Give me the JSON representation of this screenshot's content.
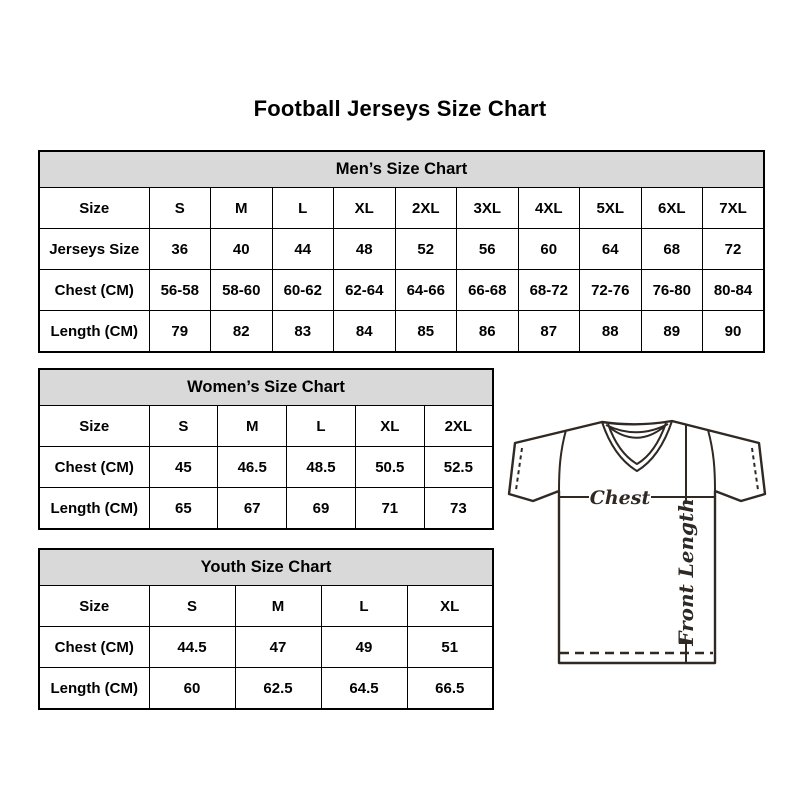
{
  "page_title": "Football Jerseys Size Chart",
  "tables": {
    "men": {
      "title": "Men’s Size Chart",
      "rows": [
        {
          "label": "Size",
          "cells": [
            "S",
            "M",
            "L",
            "XL",
            "2XL",
            "3XL",
            "4XL",
            "5XL",
            "6XL",
            "7XL"
          ]
        },
        {
          "label": "Jerseys Size",
          "cells": [
            "36",
            "40",
            "44",
            "48",
            "52",
            "56",
            "60",
            "64",
            "68",
            "72"
          ]
        },
        {
          "label": "Chest (CM)",
          "cells": [
            "56-58",
            "58-60",
            "60-62",
            "62-64",
            "64-66",
            "66-68",
            "68-72",
            "72-76",
            "76-80",
            "80-84"
          ]
        },
        {
          "label": "Length (CM)",
          "cells": [
            "79",
            "82",
            "83",
            "84",
            "85",
            "86",
            "87",
            "88",
            "89",
            "90"
          ]
        }
      ]
    },
    "women": {
      "title": "Women’s Size Chart",
      "rows": [
        {
          "label": "Size",
          "cells": [
            "S",
            "M",
            "L",
            "XL",
            "2XL"
          ]
        },
        {
          "label": "Chest (CM)",
          "cells": [
            "45",
            "46.5",
            "48.5",
            "50.5",
            "52.5"
          ]
        },
        {
          "label": "Length (CM)",
          "cells": [
            "65",
            "67",
            "69",
            "71",
            "73"
          ]
        }
      ]
    },
    "youth": {
      "title": "Youth Size Chart",
      "rows": [
        {
          "label": "Size",
          "cells": [
            "S",
            "M",
            "L",
            "XL"
          ]
        },
        {
          "label": "Chest (CM)",
          "cells": [
            "44.5",
            "47",
            "49",
            "51"
          ]
        },
        {
          "label": "Length (CM)",
          "cells": [
            "60",
            "62.5",
            "64.5",
            "66.5"
          ]
        }
      ]
    }
  },
  "diagram": {
    "chest_label": "Chest",
    "front_length_label": "Front Length"
  },
  "colors": {
    "table_header_bg": "#d9d9d9",
    "table_border": "#000000",
    "diagram_line": "#2f2823",
    "text": "#000000"
  }
}
